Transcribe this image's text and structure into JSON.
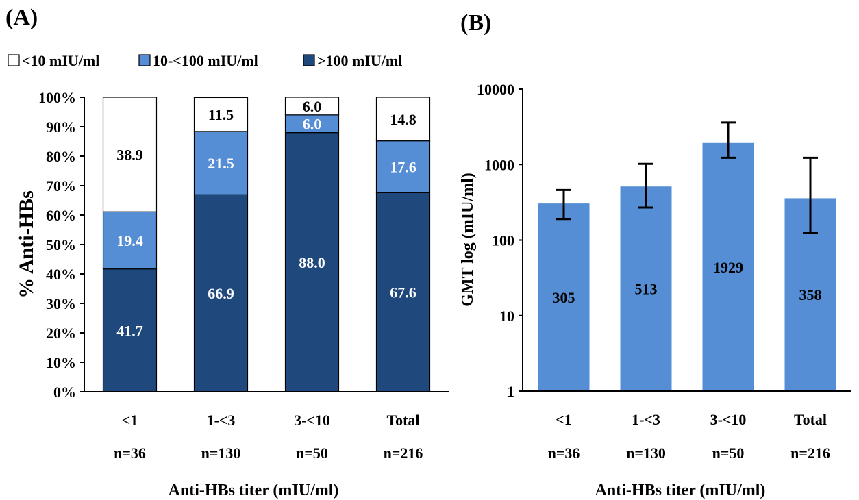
{
  "chart_data": [
    {
      "type": "bar",
      "stacked": true,
      "panel_label": "(A)",
      "categories": [
        "<1",
        "1-<3",
        "3-<10",
        "Total"
      ],
      "category_n": [
        "n=36",
        "n=130",
        "n=50",
        "n=216"
      ],
      "xlabel": "Anti-HBs titer (mIU/ml)",
      "ylabel": "% Anti-HBs",
      "ylim": [
        0,
        100
      ],
      "yticks": [
        "0%",
        "10%",
        "20%",
        "30%",
        "40%",
        "50%",
        "60%",
        "70%",
        "80%",
        "90%",
        "100%"
      ],
      "legend_position": "top",
      "series": [
        {
          "name": ">100 mIU/ml",
          "color": "#1F497D",
          "values": [
            41.7,
            66.9,
            88.0,
            67.6
          ],
          "labels": [
            "41.7",
            "66.9",
            "88.0",
            "67.6"
          ]
        },
        {
          "name": "10-<100 mIU/ml",
          "color": "#558ED5",
          "values": [
            19.4,
            21.5,
            6.0,
            17.6
          ],
          "labels": [
            "19.4",
            "21.5",
            "6.0",
            "17.6"
          ]
        },
        {
          "name": "<10 mIU/ml",
          "color": "#FFFFFF",
          "values": [
            38.9,
            11.5,
            6.0,
            14.8
          ],
          "labels": [
            "38.9",
            "11.5",
            "6.0",
            "14.8"
          ]
        }
      ],
      "legend_order": [
        "<10 mIU/ml",
        "10-<100 mIU/ml",
        ">100 mIU/ml"
      ]
    },
    {
      "type": "bar",
      "panel_label": "(B)",
      "log_scale": true,
      "categories": [
        "<1",
        "1-<3",
        "3-<10",
        "Total"
      ],
      "category_n": [
        "n=36",
        "n=130",
        "n=50",
        "n=216"
      ],
      "xlabel": "Anti-HBs titer (mIU/ml)",
      "ylabel": "GMT log (mIU/ml)",
      "ylim": [
        1,
        10000
      ],
      "yticks": [
        "1",
        "10",
        "100",
        "1000",
        "10000"
      ],
      "bar_color": "#558ED5",
      "values": [
        305,
        513,
        1929,
        358
      ],
      "labels": [
        "305",
        "513",
        "1929",
        "358"
      ],
      "error_low": [
        190,
        270,
        1230,
        125
      ],
      "error_high": [
        460,
        1020,
        3600,
        1230
      ]
    }
  ]
}
